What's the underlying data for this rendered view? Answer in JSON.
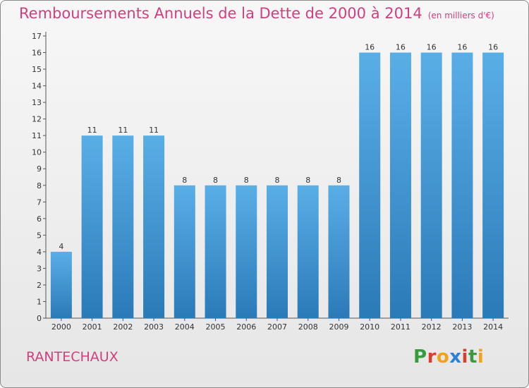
{
  "header": {
    "title": "Remboursements Annuels de la Dette de 2000 à 2014",
    "subtitle": "(en milliers d'€)"
  },
  "footer": {
    "commune": "RANTECHAUX",
    "logo_text": "Proxiti",
    "logo_colors": [
      "#3a9a3f",
      "#d73e2b",
      "#f0a318",
      "#2f7fd4",
      "#d73e2b",
      "#3a9a3f",
      "#f0a318"
    ]
  },
  "chart_data": {
    "type": "bar",
    "categories": [
      "2000",
      "2001",
      "2002",
      "2003",
      "2004",
      "2005",
      "2006",
      "2007",
      "2008",
      "2009",
      "2010",
      "2011",
      "2012",
      "2013",
      "2014"
    ],
    "values": [
      4,
      11,
      11,
      11,
      8,
      8,
      8,
      8,
      8,
      8,
      16,
      16,
      16,
      16,
      16
    ],
    "title": "Remboursements Annuels de la Dette de 2000 à 2014",
    "subtitle": "(en milliers d'€)",
    "xlabel": "",
    "ylabel": "",
    "ylim": [
      0,
      17
    ],
    "yticks": [
      0,
      1,
      2,
      3,
      4,
      5,
      6,
      7,
      8,
      9,
      10,
      11,
      12,
      13,
      14,
      15,
      16,
      17
    ],
    "grid": false,
    "legend": "none",
    "bar_color_top": "#5aaee6",
    "bar_color_bottom": "#2b7ab8",
    "data_labels": true
  }
}
